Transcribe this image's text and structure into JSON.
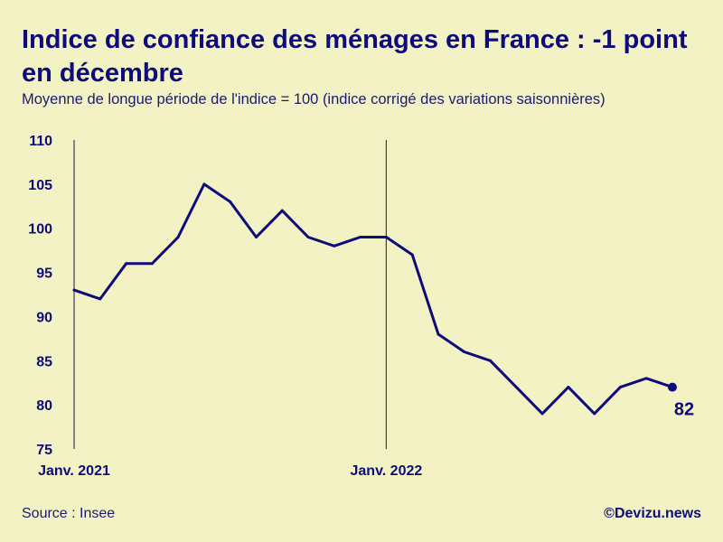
{
  "header": {
    "title": "Indice de confiance des ménages en France : -1 point en décembre",
    "subtitle": "Moyenne de longue période de l'indice = 100 (indice corrigé des variations saisonnières)"
  },
  "footer": {
    "source": "Source : Insee",
    "credit": "©Devizu.news"
  },
  "colors": {
    "background": "#f3f2c4",
    "line": "#0d0c7a"
  },
  "chart_data": {
    "type": "line",
    "title": "Indice de confiance des ménages en France : -1 point en décembre",
    "subtitle": "Moyenne de longue période de l'indice = 100 (indice corrigé des variations saisonnières)",
    "xlabel": "",
    "ylabel": "",
    "x": [
      "2021-01",
      "2021-02",
      "2021-03",
      "2021-04",
      "2021-05",
      "2021-06",
      "2021-07",
      "2021-08",
      "2021-09",
      "2021-10",
      "2021-11",
      "2021-12",
      "2022-01",
      "2022-02",
      "2022-03",
      "2022-04",
      "2022-05",
      "2022-06",
      "2022-07",
      "2022-08",
      "2022-09",
      "2022-10",
      "2022-11",
      "2022-12"
    ],
    "series": [
      {
        "values": [
          93,
          92,
          96,
          96,
          99,
          105,
          103,
          99,
          102,
          99,
          98,
          99,
          99,
          97,
          88,
          86,
          85,
          82,
          79,
          82,
          79,
          82,
          83,
          82
        ]
      }
    ],
    "ylim": [
      75,
      110
    ],
    "yticks": [
      110,
      105,
      100,
      95,
      90,
      85,
      80,
      75
    ],
    "xticks": [
      {
        "x": "2021-01",
        "label": "Janv. 2021"
      },
      {
        "x": "2022-01",
        "label": "Janv. 2022"
      }
    ],
    "last_value_label": "82",
    "grid": false,
    "legend": "none"
  }
}
